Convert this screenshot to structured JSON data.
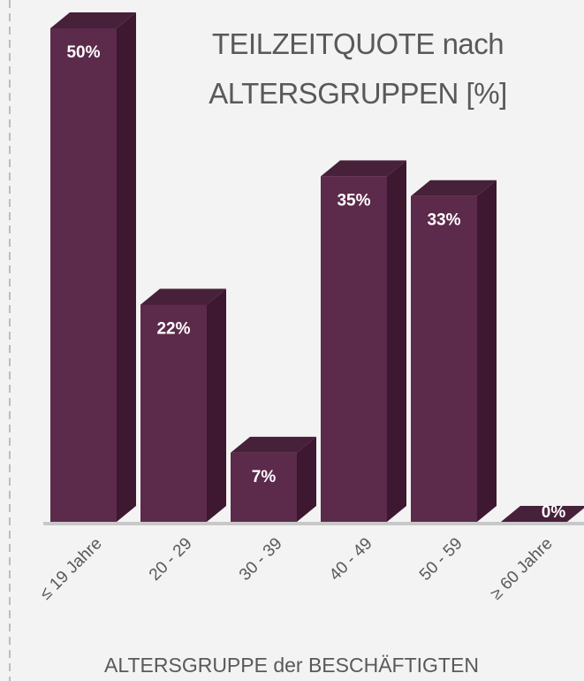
{
  "chart_data": {
    "type": "bar3d",
    "title": "TEILZEITQUOTE nach ALTERSGRUPPEN [%]",
    "x_label": "ALTERSGRUPPE der BESCHÄFTIGTEN",
    "categories": [
      "≤ 19 Jahre",
      "20 - 29",
      "30 - 39",
      "40 - 49",
      "50 - 59",
      "≥ 60 Jahre"
    ],
    "values": [
      50,
      22,
      7,
      35,
      33,
      0
    ],
    "value_labels": [
      "50%",
      "22%",
      "7%",
      "35%",
      "33%",
      "0%"
    ],
    "color": "#5c2a4a"
  }
}
